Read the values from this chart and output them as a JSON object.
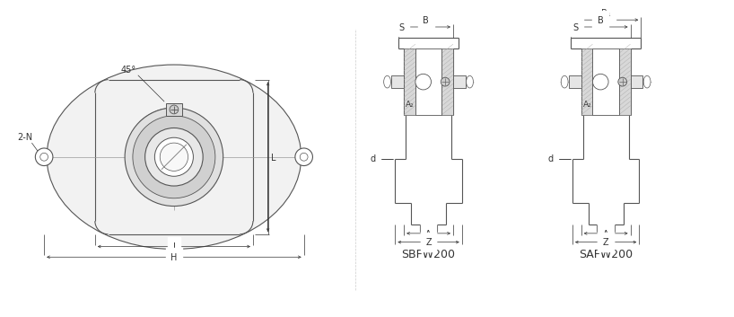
{
  "bg_color": "#ffffff",
  "line_color": "#555555",
  "dim_color": "#333333",
  "label_SBFW200": "SBFW200",
  "label_SAFW200": "SAFW200",
  "label_45deg": "45°",
  "label_2N": "2-N",
  "label_L": "L",
  "label_J": "J",
  "label_H": "H",
  "label_B": "B",
  "label_B1": "B₁",
  "label_S": "S",
  "label_d": "d",
  "label_A2": "A₂",
  "label_A": "A",
  "label_Z": "Z",
  "font_size_label": 7.0,
  "font_size_model": 9.0
}
